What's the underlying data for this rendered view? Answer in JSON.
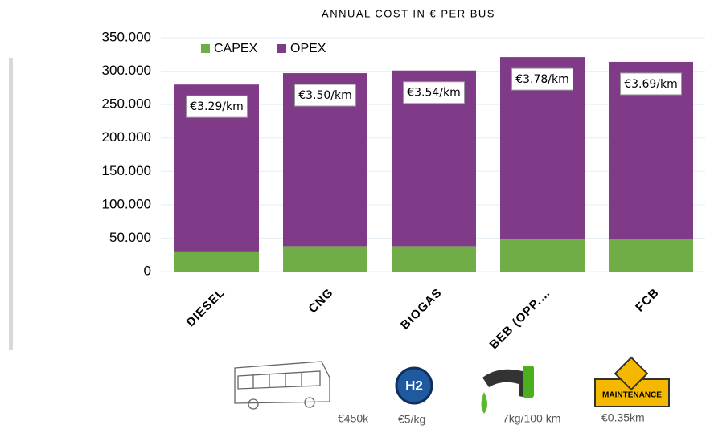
{
  "chart_data": {
    "type": "stacked_bar",
    "title": "ANNUAL COST IN € PER BUS",
    "categories": [
      "DIESEL",
      "CNG",
      "BIOGAS",
      "BEB (OPP.…",
      "FCB"
    ],
    "series": [
      {
        "name": "CAPEX",
        "color": "#70ad47",
        "values": [
          29000,
          38000,
          38000,
          48000,
          49000
        ]
      },
      {
        "name": "OPEX",
        "color": "#7f3a88",
        "values": [
          251000,
          259000,
          263000,
          273000,
          265000
        ]
      }
    ],
    "annotations": [
      "€3.29/km",
      "€3.50/km",
      "€3.54/km",
      "€3.78/km",
      "€3.69/km"
    ],
    "ylim": [
      0,
      350000
    ],
    "yticks": [
      0,
      {
        "value": 50000,
        "label": "50.000"
      },
      {
        "value": 100000,
        "label": "100.000"
      },
      {
        "value": 150000,
        "label": "150.000"
      },
      {
        "value": 200000,
        "label": "200.000"
      },
      {
        "value": 250000,
        "label": "250.000"
      },
      {
        "value": 300000,
        "label": "300.000"
      },
      {
        "value": 350000,
        "label": "350.000"
      }
    ],
    "grid": true,
    "legend": "top-left"
  },
  "footer": {
    "bus_cost": "€450k",
    "h2_icon": "H2",
    "h2_cost": "€5/kg",
    "consumption": "7kg/100 km",
    "maintenance_sign": "MAINTENANCE",
    "maintenance_cost": "€0.35km"
  }
}
